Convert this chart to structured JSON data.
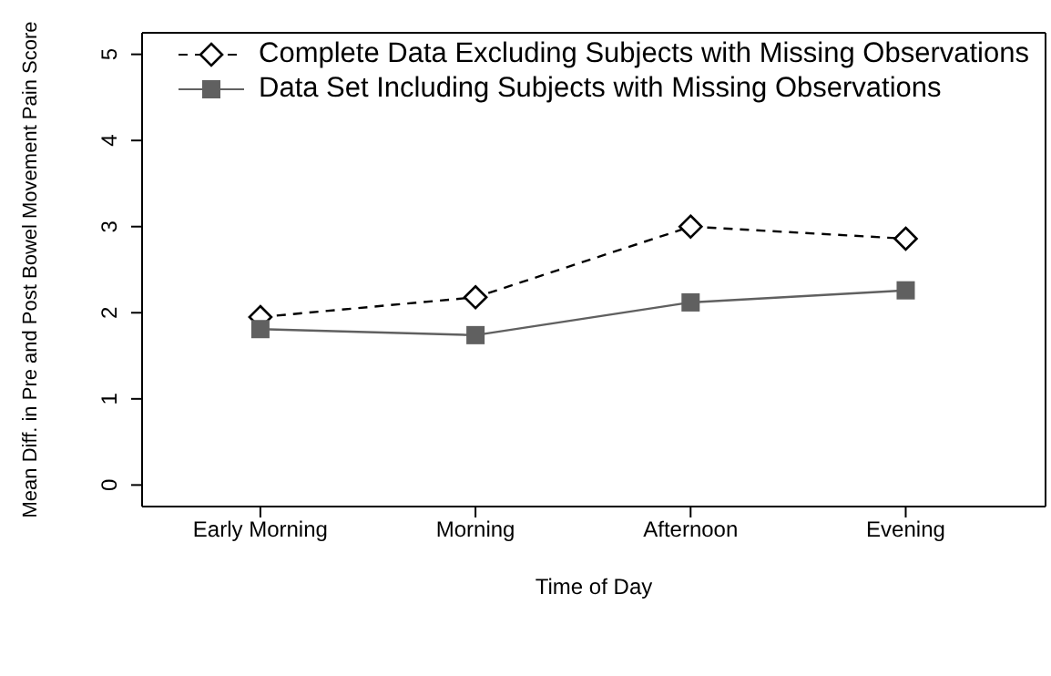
{
  "chart_data": {
    "type": "line",
    "xlabel": "Time of Day",
    "ylabel": "Mean Diff. in Pre and Post Bowel Movement Pain Score",
    "categories": [
      "Early Morning",
      "Morning",
      "Afternoon",
      "Evening"
    ],
    "series": [
      {
        "name": "Complete Data Excluding Subjects with Missing Observations",
        "color": "#000000",
        "marker": "diamond",
        "line_style": "dashed",
        "values": [
          1.95,
          2.18,
          3.0,
          2.86
        ]
      },
      {
        "name": "Data Set Including Subjects with Missing Observations",
        "color": "#606060",
        "marker": "square",
        "line_style": "solid",
        "values": [
          1.81,
          1.74,
          2.12,
          2.26
        ]
      }
    ],
    "ylim": [
      -0.25,
      5.25
    ],
    "yticks": [
      0,
      1,
      2,
      3,
      4,
      5
    ],
    "grid": false,
    "legend": "top left"
  }
}
